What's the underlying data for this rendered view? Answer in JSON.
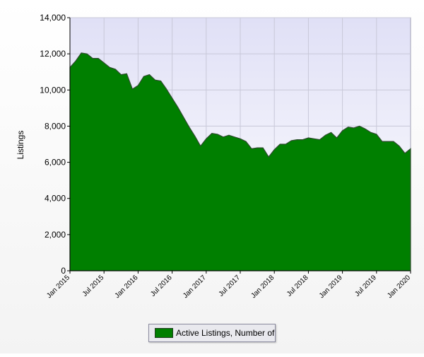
{
  "chart_data": {
    "type": "area",
    "ylabel": "Listings",
    "ylim": [
      0,
      14000
    ],
    "yticks": [
      0,
      2000,
      4000,
      6000,
      8000,
      10000,
      12000,
      14000
    ],
    "ytick_labels": [
      "0",
      "2,000",
      "4,000",
      "6,000",
      "8,000",
      "10,000",
      "12,000",
      "14,000"
    ],
    "xticks": [
      "Jan 2015",
      "Jul 2015",
      "Jan 2016",
      "Jul 2016",
      "Jan 2017",
      "Jul 2017",
      "Jan 2018",
      "Jul 2018",
      "Jan 2019",
      "Jul 2019",
      "Jan 2020"
    ],
    "grid": true,
    "legend_placement": "bottom",
    "series": [
      {
        "name": "Active Listings, Number of",
        "color": "#007f00",
        "x": [
          "2015-01",
          "2015-02",
          "2015-03",
          "2015-04",
          "2015-05",
          "2015-06",
          "2015-07",
          "2015-08",
          "2015-09",
          "2015-10",
          "2015-11",
          "2015-12",
          "2016-01",
          "2016-02",
          "2016-03",
          "2016-04",
          "2016-05",
          "2016-06",
          "2016-07",
          "2016-08",
          "2016-09",
          "2016-10",
          "2016-11",
          "2016-12",
          "2017-01",
          "2017-02",
          "2017-03",
          "2017-04",
          "2017-05",
          "2017-06",
          "2017-07",
          "2017-08",
          "2017-09",
          "2017-10",
          "2017-11",
          "2017-12",
          "2018-01",
          "2018-02",
          "2018-03",
          "2018-04",
          "2018-05",
          "2018-06",
          "2018-07",
          "2018-08",
          "2018-09",
          "2018-10",
          "2018-11",
          "2018-12",
          "2019-01",
          "2019-02",
          "2019-03",
          "2019-04",
          "2019-05",
          "2019-06",
          "2019-07",
          "2019-08",
          "2019-09",
          "2019-10",
          "2019-11",
          "2019-12",
          "2020-01"
        ],
        "values": [
          11250,
          11600,
          12050,
          12000,
          11750,
          11750,
          11500,
          11250,
          11150,
          10850,
          10900,
          10050,
          10250,
          10750,
          10850,
          10550,
          10500,
          10050,
          9550,
          9050,
          8500,
          7950,
          7450,
          6900,
          7300,
          7600,
          7550,
          7400,
          7500,
          7400,
          7300,
          7150,
          6750,
          6800,
          6800,
          6300,
          6700,
          7000,
          7000,
          7200,
          7250,
          7250,
          7350,
          7300,
          7250,
          7500,
          7650,
          7350,
          7750,
          7950,
          7900,
          8000,
          7850,
          7650,
          7550,
          7150,
          7150,
          7150,
          6900,
          6500,
          6750
        ]
      }
    ]
  }
}
